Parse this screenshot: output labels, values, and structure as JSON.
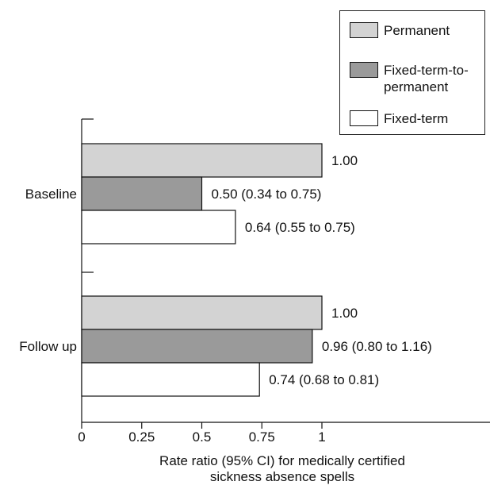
{
  "chart_data": {
    "type": "bar",
    "orientation": "horizontal",
    "xlabel": "Rate ratio (95% CI) for medically certified sickness absence spells",
    "xlim": [
      0,
      1.6
    ],
    "xticks": [
      "0",
      "0.25",
      "0.5",
      "0.75",
      "1"
    ],
    "categories": [
      "Baseline",
      "Follow up"
    ],
    "series": [
      {
        "name": "Permanent",
        "color": "#d3d3d3",
        "values": [
          1.0,
          1.0
        ],
        "labels": [
          "1.00",
          "1.00"
        ]
      },
      {
        "name": "Fixed-term-to-permanent",
        "color": "#9a9a9a",
        "values": [
          0.5,
          0.96
        ],
        "labels": [
          "0.50 (0.34 to 0.75)",
          "0.96 (0.80 to 1.16)"
        ]
      },
      {
        "name": "Fixed-term",
        "color": "#ffffff",
        "values": [
          0.64,
          0.74
        ],
        "labels": [
          "0.64 (0.55 to 0.75)",
          "0.74 (0.68 to 0.81)"
        ]
      }
    ],
    "legend_position": "top-right",
    "grid": false
  },
  "xlabel_lines": [
    "Rate ratio (95% CI) for medically certified",
    "sickness absence spells"
  ]
}
